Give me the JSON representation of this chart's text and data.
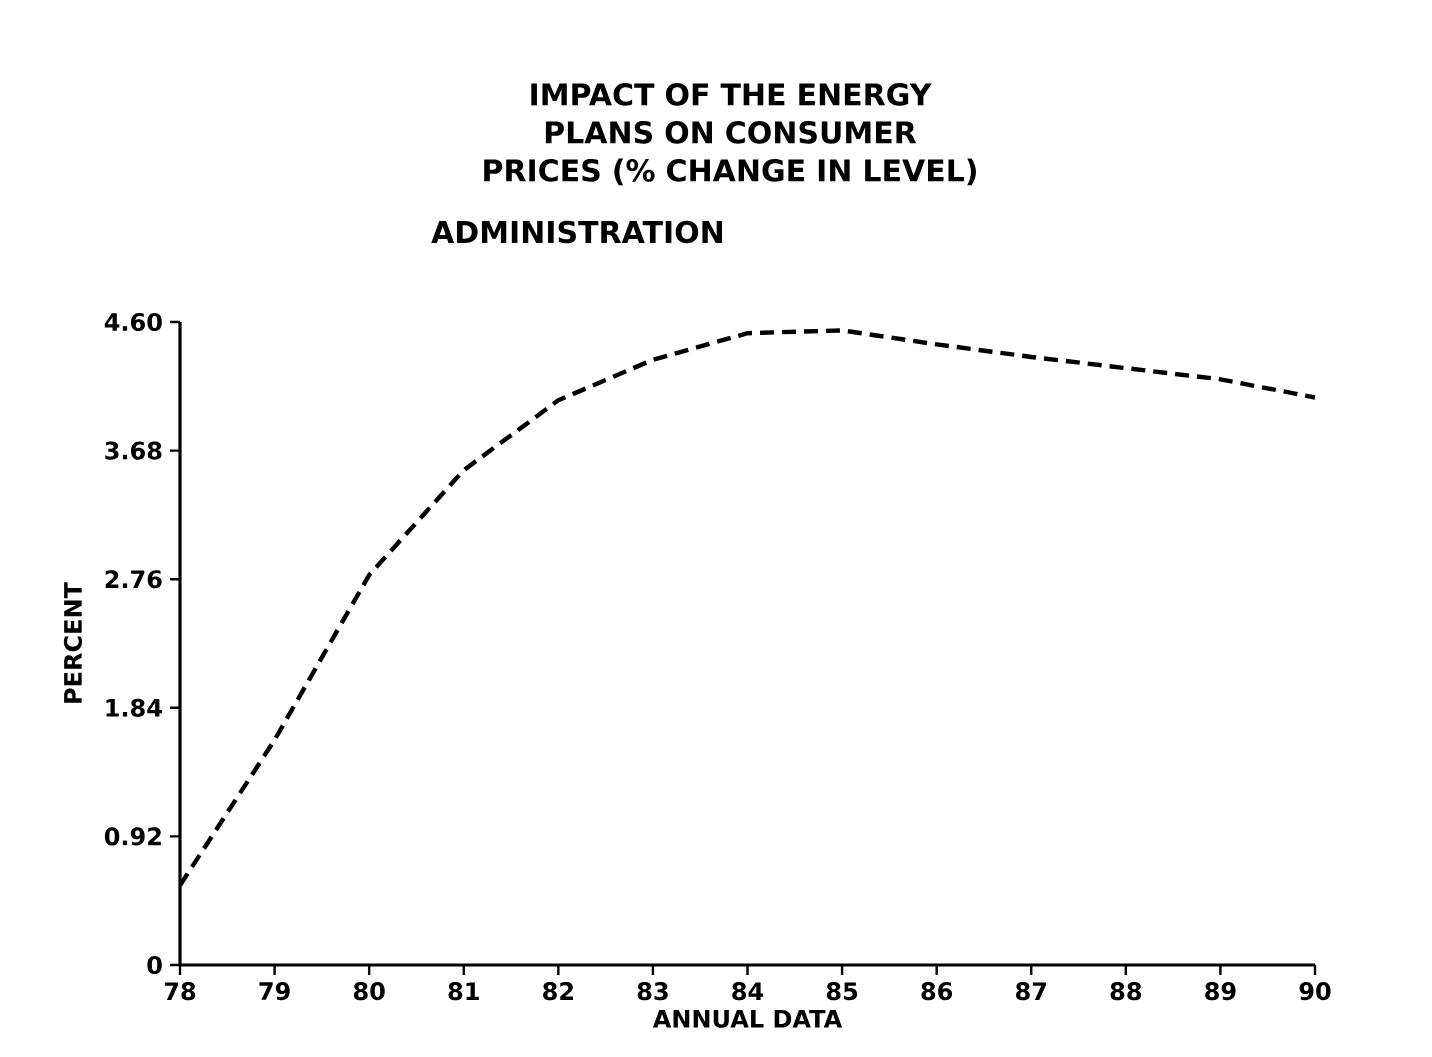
{
  "chart_data": {
    "type": "line",
    "title": "IMPACT OF THE ENERGY PLANS ON CONSUMER PRICES (% CHANGE IN LEVEL)",
    "subtitle": "ADMINISTRATION",
    "xlabel": "ANNUAL DATA",
    "ylabel": "PERCENT",
    "x": [
      78,
      79,
      80,
      81,
      82,
      83,
      84,
      85,
      86,
      87,
      88,
      89,
      90
    ],
    "values": [
      0.57,
      1.61,
      2.79,
      3.54,
      4.04,
      4.33,
      4.52,
      4.54,
      4.44,
      4.35,
      4.27,
      4.19,
      4.06
    ],
    "color": "#000000",
    "line_style": "dashed",
    "xlim": [
      78,
      90
    ],
    "ylim": [
      0,
      4.6
    ],
    "xticks": [
      78,
      79,
      80,
      81,
      82,
      83,
      84,
      85,
      86,
      87,
      88,
      89,
      90
    ],
    "yticks": [
      0,
      0.92,
      1.84,
      2.76,
      3.68,
      {
        "value": 4.6,
        "label": "4.60"
      }
    ]
  }
}
